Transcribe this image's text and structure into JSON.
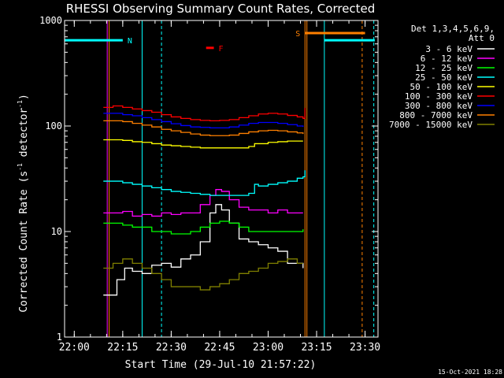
{
  "chart_data": {
    "type": "line",
    "title": "RHESSI Observing Summary Count Rates, Corrected",
    "xlabel": "Start Time (29-Jul-10 21:57:22)",
    "ylabel_main": "Corrected Count Rate (s",
    "ylabel_exp1": "-1",
    "ylabel_mid": " detector",
    "ylabel_exp2": "-1",
    "ylabel_end": ")",
    "y_scale": "log",
    "ylim": [
      1,
      1000
    ],
    "xlim_minutes": [
      21.95,
      23.5667
    ],
    "x_ticks": [
      {
        "t": 22.0,
        "label": "22:00"
      },
      {
        "t": 22.25,
        "label": "22:15"
      },
      {
        "t": 22.5,
        "label": "22:30"
      },
      {
        "t": 22.75,
        "label": "22:45"
      },
      {
        "t": 23.0,
        "label": "23:00"
      },
      {
        "t": 23.25,
        "label": "23:15"
      },
      {
        "t": 23.5,
        "label": "23:30"
      }
    ],
    "y_ticks": [
      {
        "v": 1,
        "label": "1"
      },
      {
        "v": 10,
        "label": "10"
      },
      {
        "v": 100,
        "label": "100"
      },
      {
        "v": 1000,
        "label": "1000"
      }
    ],
    "legend": {
      "header": "Det 1,3,4,5,6,9,",
      "header2": "Att 0",
      "placement": "right"
    },
    "series": [
      {
        "name": "3 - 6 keV",
        "color": "#ffffff",
        "t": [
          22.15,
          22.2,
          22.22,
          22.26,
          22.3,
          22.35,
          22.4,
          22.45,
          22.5,
          22.55,
          22.6,
          22.65,
          22.7,
          22.73,
          22.76,
          22.8,
          22.85,
          22.9,
          22.95,
          23.0,
          23.05,
          23.1,
          23.15,
          23.18
        ],
        "values": [
          2.5,
          2.5,
          3.5,
          4.5,
          4.2,
          4.0,
          4.8,
          5.0,
          4.6,
          5.5,
          6.0,
          8.0,
          15,
          18,
          16,
          12,
          8.5,
          8.0,
          7.5,
          7.0,
          6.5,
          5.0,
          5.0,
          4.5
        ]
      },
      {
        "name": "6 - 12 keV",
        "color": "#ff00ff",
        "t": [
          22.15,
          22.2,
          22.25,
          22.3,
          22.35,
          22.4,
          22.45,
          22.5,
          22.55,
          22.6,
          22.65,
          22.7,
          22.73,
          22.76,
          22.8,
          22.85,
          22.9,
          22.95,
          23.0,
          23.05,
          23.1,
          23.15,
          23.18
        ],
        "values": [
          15,
          15,
          15.5,
          14,
          14.5,
          14,
          15,
          14.5,
          15,
          15,
          18,
          22,
          25,
          24,
          20,
          17,
          16,
          16,
          15,
          16,
          15,
          15,
          15
        ]
      },
      {
        "name": "12 - 25 keV",
        "color": "#00ff00",
        "t": [
          22.15,
          22.2,
          22.25,
          22.3,
          22.35,
          22.4,
          22.45,
          22.5,
          22.55,
          22.6,
          22.65,
          22.7,
          22.75,
          22.8,
          22.85,
          22.9,
          22.95,
          23.0,
          23.05,
          23.1,
          23.15,
          23.18
        ],
        "values": [
          12,
          12,
          11.5,
          11,
          11,
          10,
          10,
          9.5,
          9.5,
          10,
          11,
          12,
          12.5,
          12,
          11,
          10,
          10,
          10,
          10,
          10,
          10,
          10.5
        ]
      },
      {
        "name": "25 - 50 keV",
        "color": "#00ffff",
        "t": [
          22.15,
          22.2,
          22.25,
          22.3,
          22.35,
          22.4,
          22.45,
          22.5,
          22.55,
          22.6,
          22.65,
          22.7,
          22.75,
          22.8,
          22.85,
          22.9,
          22.93,
          22.95,
          23.0,
          23.05,
          23.1,
          23.15,
          23.18,
          23.19
        ],
        "values": [
          30,
          30,
          29,
          28,
          27,
          26,
          25,
          24,
          23.5,
          23,
          22.5,
          22,
          22,
          22,
          22,
          23,
          28,
          27,
          28,
          29,
          30,
          32,
          33,
          38
        ]
      },
      {
        "name": "50 - 100 keV",
        "color": "#ffff00",
        "t": [
          22.15,
          22.2,
          22.25,
          22.3,
          22.35,
          22.4,
          22.45,
          22.5,
          22.55,
          22.6,
          22.65,
          22.7,
          22.75,
          22.8,
          22.85,
          22.9,
          22.93,
          22.95,
          23.0,
          23.05,
          23.1,
          23.15,
          23.18
        ],
        "values": [
          74,
          74,
          73,
          71,
          70,
          68,
          66,
          65,
          64,
          63,
          62,
          62,
          62,
          62,
          62,
          64,
          68,
          68,
          70,
          71,
          72,
          72,
          72
        ]
      },
      {
        "name": "100 - 300 keV",
        "color": "#ff0000",
        "t": [
          22.15,
          22.2,
          22.25,
          22.3,
          22.35,
          22.4,
          22.45,
          22.5,
          22.55,
          22.6,
          22.65,
          22.7,
          22.75,
          22.8,
          22.85,
          22.9,
          22.95,
          23.0,
          23.05,
          23.1,
          23.15,
          23.18,
          23.19
        ],
        "values": [
          150,
          155,
          150,
          145,
          140,
          135,
          128,
          122,
          118,
          115,
          113,
          112,
          113,
          115,
          120,
          125,
          130,
          132,
          130,
          126,
          122,
          118,
          148
        ]
      },
      {
        "name": "300 - 800 keV",
        "color": "#0000ff",
        "t": [
          22.15,
          22.2,
          22.25,
          22.3,
          22.35,
          22.4,
          22.45,
          22.5,
          22.55,
          22.6,
          22.65,
          22.7,
          22.75,
          22.8,
          22.85,
          22.9,
          22.95,
          23.0,
          23.05,
          23.1,
          23.15,
          23.18
        ],
        "values": [
          132,
          132,
          128,
          125,
          120,
          115,
          110,
          105,
          101,
          98,
          97,
          96,
          96,
          98,
          102,
          106,
          108,
          108,
          106,
          103,
          100,
          98
        ]
      },
      {
        "name": "800 - 7000 keV",
        "color": "#ff8000",
        "t": [
          22.15,
          22.2,
          22.25,
          22.3,
          22.35,
          22.4,
          22.45,
          22.5,
          22.55,
          22.6,
          22.65,
          22.7,
          22.75,
          22.8,
          22.85,
          22.9,
          22.95,
          23.0,
          23.05,
          23.1,
          23.15,
          23.18
        ],
        "values": [
          112,
          112,
          110,
          106,
          102,
          98,
          93,
          90,
          87,
          84,
          82,
          81,
          81,
          82,
          85,
          88,
          90,
          91,
          90,
          88,
          86,
          84
        ]
      },
      {
        "name": "7000 - 15000 keV",
        "color": "#808000",
        "t": [
          22.15,
          22.2,
          22.25,
          22.3,
          22.35,
          22.4,
          22.45,
          22.5,
          22.55,
          22.6,
          22.65,
          22.7,
          22.75,
          22.8,
          22.85,
          22.9,
          22.95,
          23.0,
          23.05,
          23.1,
          23.15,
          23.18
        ],
        "values": [
          4.5,
          5.0,
          5.5,
          5.0,
          4.5,
          4.0,
          3.5,
          3.0,
          3.0,
          3.0,
          2.8,
          3.0,
          3.2,
          3.5,
          4.0,
          4.2,
          4.5,
          5.0,
          5.2,
          5.5,
          5.0,
          5.0
        ]
      }
    ],
    "orbit_bars": [
      {
        "label": "N",
        "color": "#00ffff",
        "t0": 21.95,
        "t1": 22.25,
        "level": 650
      },
      {
        "label": "F",
        "color": "#ff0000",
        "t0": 22.68,
        "t1": 22.72,
        "level": 550
      },
      {
        "label": "S",
        "color": "#ff8000",
        "t0": 23.19,
        "t1": 23.5,
        "level": 760
      },
      {
        "label": "",
        "color": "#00ffff",
        "t0": 23.29,
        "t1": 23.55,
        "level": 650
      }
    ],
    "vlines": [
      {
        "t": 22.35,
        "color": "#00ffff",
        "style": "solid"
      },
      {
        "t": 22.45,
        "color": "#00ffff",
        "style": "dashed"
      },
      {
        "t": 22.17,
        "color": "#ff00ff",
        "style": "solid"
      },
      {
        "t": 22.18,
        "color": "#ff8000",
        "style": "solid"
      },
      {
        "t": 23.19,
        "color": "#ff8000",
        "style": "solid"
      },
      {
        "t": 23.2,
        "color": "#ff8000",
        "style": "solid"
      },
      {
        "t": 23.29,
        "color": "#00ffff",
        "style": "solid"
      },
      {
        "t": 23.485,
        "color": "#ff8000",
        "style": "dashed"
      },
      {
        "t": 23.545,
        "color": "#00ffff",
        "style": "dashed"
      }
    ],
    "timestamp": "15-Oct-2021 18:28"
  },
  "colors": {
    "background": "#000000",
    "axes": "#ffffff"
  }
}
